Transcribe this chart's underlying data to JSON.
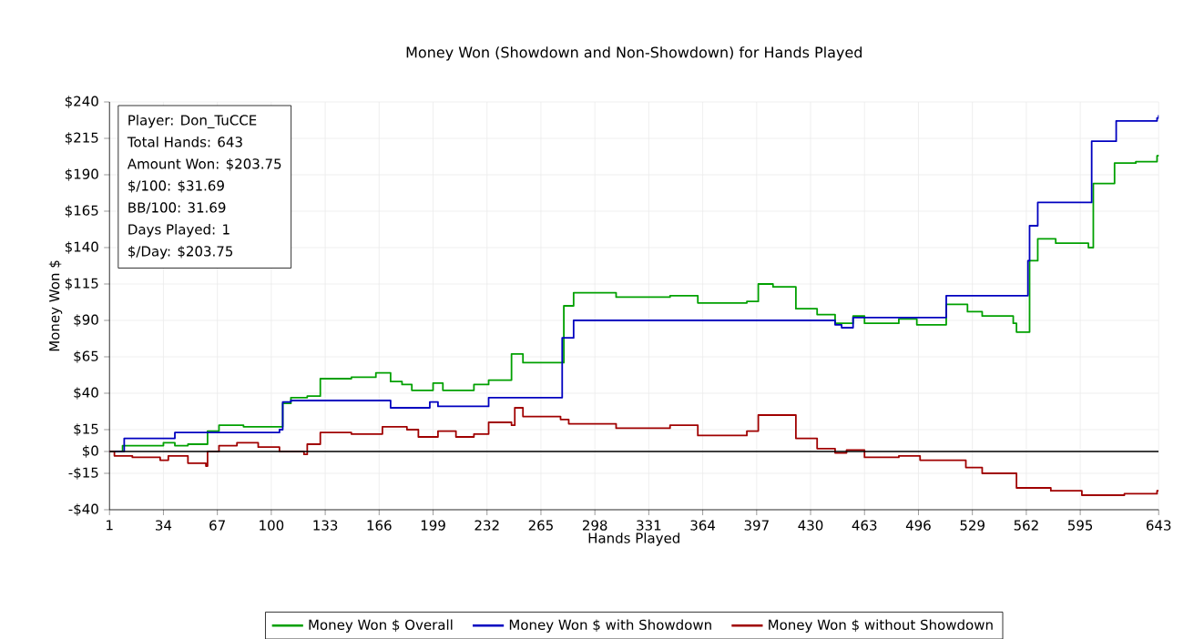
{
  "chart_data": {
    "type": "step",
    "title": "Money Won (Showdown and Non-Showdown) for Hands Played",
    "xlabel": "Hands Played",
    "ylabel": "Money Won $",
    "annotations": [
      "Player: Don_TuCCE",
      "Total Hands: 643",
      "Amount Won: $203.75",
      "$/100: $31.69",
      "BB/100: 31.69",
      "Days Played: 1",
      "$/Day: $203.75"
    ],
    "xlim": [
      1,
      643
    ],
    "xticks": [
      1,
      34,
      67,
      100,
      133,
      166,
      199,
      232,
      265,
      298,
      331,
      364,
      397,
      430,
      463,
      496,
      529,
      562,
      595,
      643
    ],
    "ylim": [
      -40,
      240
    ],
    "yticks": [
      {
        "value": -40,
        "label": "-$40"
      },
      {
        "value": -15,
        "label": "-$15"
      },
      {
        "value": 0,
        "label": "$0"
      },
      {
        "value": 15,
        "label": "$15"
      },
      {
        "value": 40,
        "label": "$40"
      },
      {
        "value": 65,
        "label": "$65"
      },
      {
        "value": 90,
        "label": "$90"
      },
      {
        "value": 115,
        "label": "$115"
      },
      {
        "value": 140,
        "label": "$140"
      },
      {
        "value": 165,
        "label": "$165"
      },
      {
        "value": 190,
        "label": "$190"
      },
      {
        "value": 215,
        "label": "$215"
      },
      {
        "value": 240,
        "label": "$240"
      }
    ],
    "grid": true,
    "legend": "bottom",
    "marker": "none",
    "line_style": "solid",
    "ref_lines": [
      {
        "axis": "y",
        "value": 0,
        "color": "#000000"
      }
    ],
    "series": [
      {
        "name": "Money Won $ Overall",
        "color": "#00a000",
        "x": [
          1,
          9,
          34,
          41,
          49,
          61,
          68,
          83,
          105,
          107,
          112,
          122,
          130,
          149,
          164,
          173,
          180,
          186,
          199,
          205,
          213,
          224,
          233,
          247,
          254,
          277,
          279,
          285,
          311,
          344,
          361,
          391,
          398,
          407,
          421,
          434,
          445,
          456,
          463,
          484,
          495,
          513,
          526,
          535,
          554,
          556,
          562,
          564,
          569,
          580,
          600,
          603,
          616,
          629,
          642,
          643
        ],
        "values": [
          0,
          4,
          6,
          4,
          5,
          14,
          18,
          17,
          17,
          33,
          37,
          38,
          50,
          51,
          54,
          48,
          46,
          42,
          47,
          42,
          42,
          46,
          49,
          67,
          61,
          61,
          100,
          109,
          106,
          107,
          102,
          103,
          115,
          113,
          98,
          94,
          88,
          93,
          88,
          91,
          87,
          101,
          96,
          93,
          88,
          82,
          82,
          131,
          146,
          143,
          140,
          184,
          198,
          199,
          203,
          203.75
        ]
      },
      {
        "name": "Money Won $ with Showdown",
        "color": "#0000c0",
        "x": [
          1,
          10,
          41,
          105,
          107,
          112,
          122,
          173,
          197,
          202,
          233,
          278,
          285,
          445,
          449,
          456,
          513,
          563,
          564,
          569,
          602,
          617,
          642,
          643
        ],
        "values": [
          0,
          9,
          13,
          15,
          34,
          35,
          35,
          30,
          34,
          31,
          37,
          78,
          90,
          87,
          85,
          92,
          107,
          131,
          155,
          171,
          213,
          227,
          229,
          231
        ]
      },
      {
        "name": "Money Won $ without Showdown",
        "color": "#a00000",
        "x": [
          1,
          4,
          15,
          32,
          37,
          49,
          60,
          61,
          68,
          79,
          92,
          105,
          120,
          122,
          130,
          149,
          168,
          183,
          190,
          202,
          213,
          224,
          233,
          247,
          249,
          254,
          277,
          282,
          311,
          344,
          361,
          391,
          398,
          421,
          434,
          445,
          452,
          463,
          484,
          497,
          525,
          535,
          554,
          556,
          577,
          596,
          622,
          642,
          643
        ],
        "values": [
          0,
          -3,
          -4,
          -6,
          -3,
          -8,
          -10,
          0,
          4,
          6,
          3,
          0,
          -2,
          5,
          13,
          12,
          17,
          15,
          10,
          14,
          10,
          12,
          20,
          18,
          30,
          24,
          22,
          19,
          16,
          18,
          11,
          14,
          25,
          9,
          2,
          -1,
          1,
          -4,
          -3,
          -6,
          -11,
          -15,
          -15,
          -25,
          -27,
          -30,
          -29,
          -27,
          -27
        ]
      }
    ]
  }
}
